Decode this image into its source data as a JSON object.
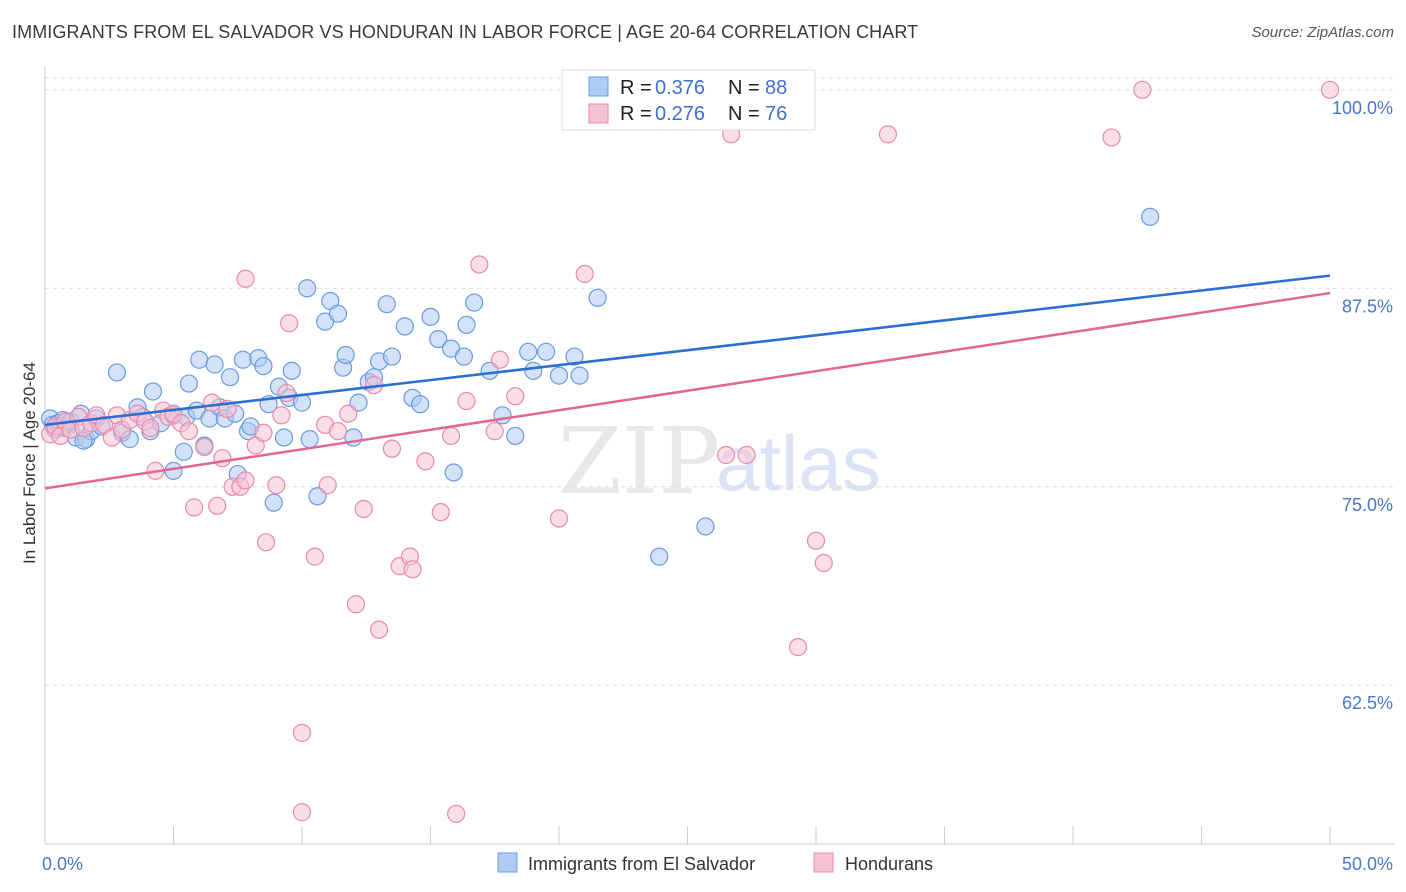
{
  "header": {
    "title": "IMMIGRANTS FROM EL SALVADOR VS HONDURAN IN LABOR FORCE | AGE 20-64 CORRELATION CHART",
    "source": "Source: ZipAtlas.com"
  },
  "watermark": {
    "zip": "ZIP",
    "atlas": "atlas"
  },
  "colors": {
    "blue_fill": "#aecbf3",
    "blue_stroke": "#6a9be0",
    "blue_line": "#2b6fd1",
    "pink_fill": "#f6c3d3",
    "pink_stroke": "#e98aab",
    "pink_line": "#e0678f",
    "tick_label": "#4a78c9",
    "grid": "#dcdcdc"
  },
  "legend": {
    "rows": [
      {
        "r_label": "R = ",
        "r_value": "0.376",
        "n_label": "N = ",
        "n_value": "88"
      },
      {
        "r_label": "R = ",
        "r_value": "0.276",
        "n_label": "N = ",
        "n_value": "76"
      }
    ]
  },
  "chart_data": {
    "type": "scatter",
    "title": "IMMIGRANTS FROM EL SALVADOR VS HONDURAN IN LABOR FORCE | AGE 20-64 CORRELATION CHART",
    "xlabel": "",
    "ylabel": "In Labor Force | Age 20-64",
    "xlim": [
      0,
      50
    ],
    "ylim": [
      52.5,
      101.5
    ],
    "x_tick_labels": [
      "0.0%",
      "50.0%"
    ],
    "y_ticks": [
      62.5,
      75.0,
      87.5,
      100.0
    ],
    "y_tick_labels": [
      "62.5%",
      "75.0%",
      "87.5%",
      "100.0%"
    ],
    "grid": "horizontal dashed",
    "legend_position": "top-center",
    "series": [
      {
        "name": "Immigrants from El Salvador",
        "color": "#aecbf3",
        "trend": {
          "x": [
            0,
            50
          ],
          "y": [
            78.9,
            88.3
          ]
        },
        "points": [
          [
            0.2,
            79.3
          ],
          [
            0.3,
            78.9
          ],
          [
            0.4,
            78.6
          ],
          [
            0.5,
            79.0
          ],
          [
            0.6,
            78.8
          ],
          [
            0.7,
            79.2
          ],
          [
            0.8,
            78.7
          ],
          [
            1.0,
            79.1
          ],
          [
            1.2,
            78.1
          ],
          [
            1.4,
            79.6
          ],
          [
            1.6,
            78.0
          ],
          [
            1.8,
            78.5
          ],
          [
            2.0,
            79.3
          ],
          [
            2.2,
            78.8
          ],
          [
            2.8,
            82.2
          ],
          [
            3.0,
            78.4
          ],
          [
            3.3,
            78.0
          ],
          [
            3.6,
            80.0
          ],
          [
            3.8,
            79.4
          ],
          [
            4.1,
            78.5
          ],
          [
            4.2,
            81.0
          ],
          [
            4.5,
            79.0
          ],
          [
            5.0,
            76.0
          ],
          [
            5.0,
            79.5
          ],
          [
            5.4,
            77.2
          ],
          [
            5.5,
            79.4
          ],
          [
            5.6,
            81.5
          ],
          [
            5.9,
            79.8
          ],
          [
            6.0,
            83.0
          ],
          [
            6.2,
            77.6
          ],
          [
            6.4,
            79.3
          ],
          [
            6.6,
            82.7
          ],
          [
            6.8,
            80.0
          ],
          [
            7.0,
            79.3
          ],
          [
            7.2,
            81.9
          ],
          [
            7.4,
            79.6
          ],
          [
            7.5,
            75.8
          ],
          [
            7.7,
            83.0
          ],
          [
            7.9,
            78.5
          ],
          [
            8.0,
            78.8
          ],
          [
            8.3,
            83.1
          ],
          [
            8.5,
            82.6
          ],
          [
            8.7,
            80.2
          ],
          [
            8.9,
            74.0
          ],
          [
            9.1,
            81.3
          ],
          [
            9.3,
            78.1
          ],
          [
            9.5,
            80.6
          ],
          [
            9.6,
            82.3
          ],
          [
            10.0,
            80.3
          ],
          [
            10.2,
            87.5
          ],
          [
            10.3,
            78.0
          ],
          [
            10.6,
            74.4
          ],
          [
            10.9,
            85.4
          ],
          [
            11.1,
            86.7
          ],
          [
            11.4,
            85.9
          ],
          [
            11.6,
            82.5
          ],
          [
            11.7,
            83.3
          ],
          [
            12.0,
            78.1
          ],
          [
            12.2,
            80.3
          ],
          [
            12.6,
            81.6
          ],
          [
            12.8,
            81.9
          ],
          [
            13.0,
            82.9
          ],
          [
            13.3,
            86.5
          ],
          [
            13.5,
            83.2
          ],
          [
            14.0,
            85.1
          ],
          [
            14.3,
            80.6
          ],
          [
            14.6,
            80.2
          ],
          [
            15.0,
            85.7
          ],
          [
            15.3,
            84.3
          ],
          [
            15.8,
            83.7
          ],
          [
            15.9,
            75.9
          ],
          [
            16.3,
            83.2
          ],
          [
            16.4,
            85.2
          ],
          [
            16.7,
            86.6
          ],
          [
            17.3,
            82.3
          ],
          [
            17.8,
            79.5
          ],
          [
            18.3,
            78.2
          ],
          [
            18.8,
            83.5
          ],
          [
            19.0,
            82.3
          ],
          [
            19.5,
            83.5
          ],
          [
            20.0,
            82.0
          ],
          [
            20.6,
            83.2
          ],
          [
            20.8,
            82.0
          ],
          [
            21.5,
            86.9
          ],
          [
            23.9,
            70.6
          ],
          [
            25.7,
            72.5
          ],
          [
            43.0,
            92.0
          ],
          [
            1.5,
            77.9
          ]
        ]
      },
      {
        "name": "Hondurans",
        "color": "#f6c3d3",
        "trend": {
          "x": [
            0,
            50
          ],
          "y": [
            74.9,
            87.2
          ]
        },
        "points": [
          [
            0.2,
            78.3
          ],
          [
            0.4,
            78.8
          ],
          [
            0.6,
            78.2
          ],
          [
            0.8,
            79.1
          ],
          [
            1.0,
            78.6
          ],
          [
            1.3,
            79.4
          ],
          [
            1.5,
            78.7
          ],
          [
            1.8,
            79.0
          ],
          [
            2.0,
            79.5
          ],
          [
            2.3,
            78.9
          ],
          [
            2.6,
            78.1
          ],
          [
            2.8,
            79.5
          ],
          [
            3.0,
            78.6
          ],
          [
            3.3,
            79.2
          ],
          [
            3.6,
            79.6
          ],
          [
            3.9,
            79.1
          ],
          [
            4.1,
            78.7
          ],
          [
            4.3,
            76.0
          ],
          [
            4.6,
            79.8
          ],
          [
            4.8,
            79.4
          ],
          [
            5.0,
            79.6
          ],
          [
            5.3,
            79.0
          ],
          [
            5.6,
            78.5
          ],
          [
            5.8,
            73.7
          ],
          [
            6.2,
            77.5
          ],
          [
            6.5,
            80.3
          ],
          [
            6.7,
            73.8
          ],
          [
            6.9,
            76.8
          ],
          [
            7.1,
            79.9
          ],
          [
            7.3,
            75.0
          ],
          [
            7.6,
            75.0
          ],
          [
            7.8,
            75.4
          ],
          [
            7.8,
            88.1
          ],
          [
            8.2,
            77.6
          ],
          [
            8.5,
            78.4
          ],
          [
            8.6,
            71.5
          ],
          [
            9.0,
            75.1
          ],
          [
            9.2,
            79.5
          ],
          [
            9.4,
            80.9
          ],
          [
            9.5,
            85.3
          ],
          [
            10.0,
            59.5
          ],
          [
            10.5,
            70.6
          ],
          [
            10.9,
            78.9
          ],
          [
            11.0,
            75.1
          ],
          [
            11.4,
            78.5
          ],
          [
            11.8,
            79.6
          ],
          [
            12.1,
            67.6
          ],
          [
            12.4,
            73.6
          ],
          [
            12.8,
            81.4
          ],
          [
            13.0,
            66.0
          ],
          [
            13.5,
            77.4
          ],
          [
            13.8,
            70.0
          ],
          [
            14.2,
            70.6
          ],
          [
            14.3,
            69.8
          ],
          [
            14.8,
            76.6
          ],
          [
            15.4,
            73.4
          ],
          [
            15.8,
            78.2
          ],
          [
            16.4,
            80.4
          ],
          [
            16.9,
            89.0
          ],
          [
            17.5,
            78.5
          ],
          [
            17.7,
            83.0
          ],
          [
            18.3,
            80.7
          ],
          [
            20.0,
            73.0
          ],
          [
            21.0,
            88.4
          ],
          [
            26.5,
            77.0
          ],
          [
            26.7,
            97.2
          ],
          [
            27.3,
            77.0
          ],
          [
            29.3,
            64.9
          ],
          [
            30.0,
            71.6
          ],
          [
            30.3,
            70.2
          ],
          [
            32.8,
            97.2
          ],
          [
            41.5,
            97.0
          ],
          [
            42.7,
            100.0
          ],
          [
            50.0,
            100.0
          ],
          [
            10.0,
            54.5
          ],
          [
            16.0,
            54.4
          ]
        ]
      }
    ]
  }
}
